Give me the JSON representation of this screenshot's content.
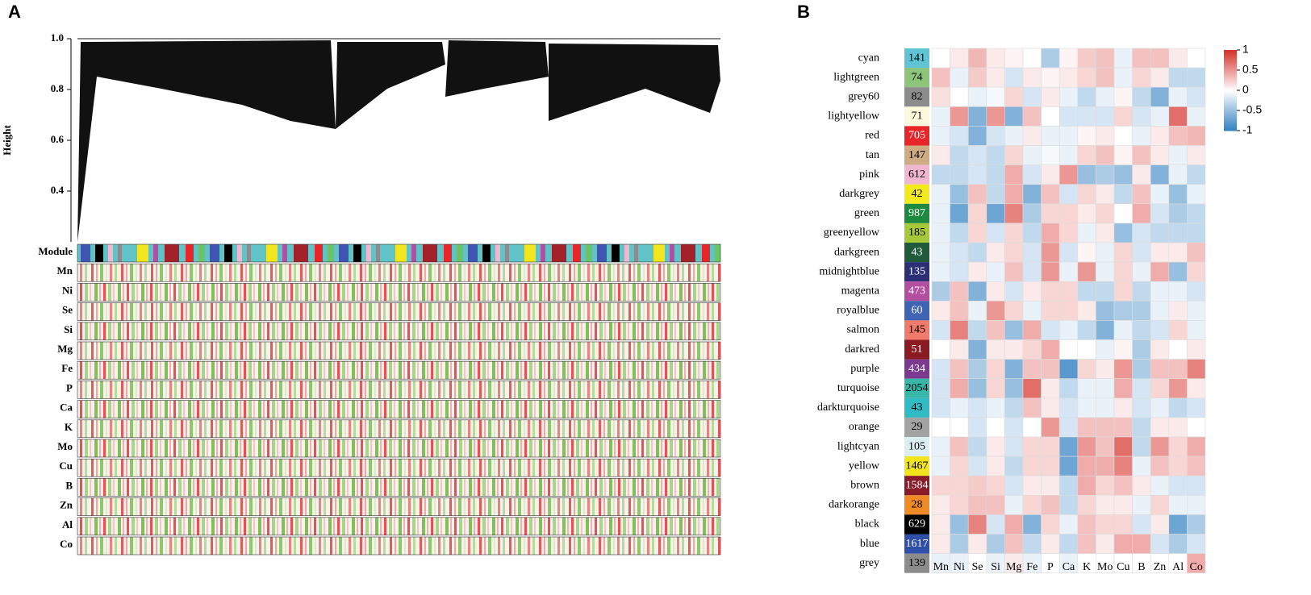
{
  "panel_a": {
    "label": "A",
    "y_label": "Height",
    "yticks": [
      0.4,
      0.6,
      {
        "value": 1.0,
        "label": "1.0"
      },
      0.8
    ],
    "ylim": [
      0.2,
      1.0
    ],
    "rows": [
      "Module",
      "Mn",
      "Ni",
      "Se",
      "Si",
      "Mg",
      "Fe",
      "P",
      "Ca",
      "K",
      "Mo",
      "Cu",
      "B",
      "Zn",
      "Al",
      "Co"
    ]
  },
  "chart_data": {
    "type": "heatmap",
    "label": "B",
    "columns": [
      "Mn",
      "Ni",
      "Se",
      "Si",
      "Mg",
      "Fe",
      "P",
      "Ca",
      "K",
      "Mo",
      "Cu",
      "B",
      "Zn",
      "Al",
      "Co"
    ],
    "rows": [
      {
        "name": "cyan",
        "color": "#5fc4d4",
        "count": 141,
        "values": [
          0,
          0.1,
          0.35,
          0.1,
          0.05,
          0,
          -0.4,
          0.05,
          0.25,
          0.3,
          -0.1,
          0.3,
          0.3,
          0.1,
          0
        ]
      },
      {
        "name": "lightgreen",
        "color": "#8cc47a",
        "count": 74,
        "values": [
          0.3,
          -0.1,
          0.25,
          0.1,
          -0.2,
          0.1,
          0.05,
          0.1,
          0.2,
          0.3,
          -0.1,
          0.2,
          0.1,
          -0.3,
          -0.3
        ]
      },
      {
        "name": "grey60",
        "color": "#8c8c8c",
        "count": 82,
        "values": [
          0.15,
          0,
          -0.1,
          -0.05,
          0.2,
          -0.2,
          0.1,
          -0.1,
          -0.3,
          -0.1,
          0.05,
          -0.3,
          -0.6,
          -0.1,
          -0.2
        ]
      },
      {
        "name": "lightyellow",
        "color": "#fdf9dc",
        "count": 71,
        "values": [
          -0.1,
          0.5,
          -0.6,
          0.5,
          -0.6,
          0.3,
          0,
          -0.2,
          -0.2,
          -0.2,
          0.2,
          -0.2,
          -0.1,
          0.7,
          -0.1
        ]
      },
      {
        "name": "red",
        "color": "#e8262a",
        "count": 705,
        "values": [
          -0.1,
          -0.2,
          -0.6,
          -0.2,
          -0.1,
          0.1,
          -0.1,
          -0.1,
          0.05,
          0.1,
          0,
          -0.1,
          0.1,
          0.3,
          0.35
        ]
      },
      {
        "name": "tan",
        "color": "#cfab84",
        "count": 147,
        "values": [
          0.1,
          -0.3,
          -0.2,
          -0.3,
          0.2,
          -0.1,
          -0.05,
          -0.1,
          0.2,
          0.3,
          0.05,
          0.3,
          0.1,
          -0.1,
          0.1
        ]
      },
      {
        "name": "pink",
        "color": "#f2b7d0",
        "count": 612,
        "values": [
          -0.3,
          -0.3,
          -0.2,
          -0.3,
          0.4,
          -0.2,
          0.1,
          0.5,
          -0.5,
          -0.4,
          -0.5,
          0.1,
          -0.6,
          -0.1,
          -0.3
        ]
      },
      {
        "name": "darkgrey",
        "color": "#f3ea1e",
        "count": 42,
        "values": [
          -0.1,
          -0.5,
          0.3,
          -0.3,
          0.4,
          -0.6,
          0.3,
          -0.2,
          0.2,
          0.1,
          -0.3,
          0.3,
          -0.1,
          -0.5,
          -0.1
        ]
      },
      {
        "name": "green",
        "color": "#1d8a3f",
        "count": 987,
        "values": [
          -0.1,
          -0.7,
          0.2,
          -0.7,
          0.6,
          -0.4,
          0.2,
          0.2,
          0.1,
          0.2,
          0,
          0.4,
          -0.2,
          -0.4,
          -0.3
        ]
      },
      {
        "name": "greenyellow",
        "color": "#a6c93a",
        "count": 185,
        "values": [
          -0.1,
          -0.3,
          0.2,
          -0.2,
          0.2,
          -0.3,
          0.4,
          0.2,
          -0.1,
          0.1,
          -0.5,
          -0.2,
          -0.3,
          -0.3,
          -0.3
        ]
      },
      {
        "name": "darkgreen",
        "color": "#1f5b3a",
        "count": 43,
        "values": [
          -0.1,
          -0.2,
          -0.3,
          0.1,
          0.2,
          -0.2,
          0.5,
          -0.2,
          0.05,
          -0.1,
          0.2,
          -0.2,
          0.1,
          0.1,
          0.3
        ]
      },
      {
        "name": "midnightblue",
        "color": "#2c2f74",
        "count": 135,
        "values": [
          -0.1,
          -0.2,
          0.1,
          -0.1,
          0.3,
          -0.2,
          0.5,
          -0.1,
          0.5,
          -0.1,
          0.2,
          -0.1,
          0.4,
          -0.5,
          0.2
        ]
      },
      {
        "name": "magenta",
        "color": "#b44ea0",
        "count": 473,
        "values": [
          -0.4,
          0.3,
          -0.6,
          0.1,
          -0.2,
          0.1,
          0.2,
          0.2,
          -0.3,
          -0.3,
          0.2,
          -0.3,
          -0.1,
          -0.1,
          -0.2
        ]
      },
      {
        "name": "royalblue",
        "color": "#3f64b4",
        "count": 60,
        "values": [
          0.1,
          0.3,
          -0.1,
          0.5,
          0.2,
          -0.1,
          0.2,
          0.2,
          0.1,
          -0.5,
          -0.4,
          -0.4,
          -0.1,
          0.1,
          -0.1
        ]
      },
      {
        "name": "salmon",
        "color": "#f07b6c",
        "count": 145,
        "values": [
          -0.2,
          0.6,
          -0.3,
          0.3,
          -0.5,
          0.4,
          -0.2,
          -0.1,
          -0.3,
          -0.6,
          -0.1,
          -0.3,
          -0.2,
          0.2,
          -0.1
        ]
      },
      {
        "name": "darkred",
        "color": "#8b1a22",
        "count": 51,
        "values": [
          0,
          0.1,
          -0.6,
          0.1,
          0.1,
          0.2,
          0.4,
          0,
          0,
          -0.1,
          0.05,
          -0.4,
          0.1,
          0,
          0.1
        ]
      },
      {
        "name": "purple",
        "color": "#7b3a8f",
        "count": 434,
        "values": [
          -0.2,
          0.3,
          -0.4,
          0.2,
          -0.6,
          0.3,
          0.3,
          -0.8,
          0.2,
          0.1,
          0.5,
          -0.4,
          0.3,
          0.3,
          0.6
        ]
      },
      {
        "name": "turquoise",
        "color": "#37b7a9",
        "count": 2054,
        "values": [
          -0.2,
          0.4,
          -0.5,
          0.2,
          -0.5,
          0.7,
          0.1,
          -0.3,
          -0.1,
          -0.1,
          0.4,
          -0.2,
          0.2,
          0.5,
          0.1
        ]
      },
      {
        "name": "darkturquoise",
        "color": "#2fbcc4",
        "count": 43,
        "values": [
          -0.2,
          -0.1,
          -0.2,
          -0.1,
          -0.3,
          0.3,
          0.1,
          -0.2,
          -0.1,
          -0.1,
          0.1,
          -0.2,
          -0.1,
          -0.3,
          -0.2
        ]
      },
      {
        "name": "orange",
        "color": "#a3a3a3",
        "count": 29,
        "values": [
          0,
          0,
          -0.2,
          0,
          -0.2,
          0,
          0.5,
          -0.2,
          0.3,
          0.3,
          0.3,
          -0.3,
          0.1,
          0.1,
          0
        ]
      },
      {
        "name": "lightcyan",
        "color": "#dbeff2",
        "count": 105,
        "values": [
          -0.1,
          0.3,
          -0.3,
          0.1,
          -0.2,
          0.2,
          0.2,
          -0.7,
          0.5,
          0.3,
          0.7,
          -0.3,
          0.5,
          0.2,
          0.4
        ]
      },
      {
        "name": "yellow",
        "color": "#f2e51c",
        "count": 1467,
        "values": [
          -0.1,
          0.2,
          -0.2,
          0.1,
          -0.3,
          0.2,
          0.2,
          -0.7,
          0.4,
          0.4,
          0.6,
          -0.1,
          0.3,
          0.2,
          0.3
        ]
      },
      {
        "name": "brown",
        "color": "#8a1c2a",
        "count": 1584,
        "values": [
          0.2,
          0.2,
          0.25,
          0.2,
          -0.2,
          0.1,
          0.1,
          -0.3,
          0.4,
          0.2,
          0.3,
          0.1,
          -0.1,
          -0.2,
          -0.2
        ]
      },
      {
        "name": "darkorange",
        "color": "#f08a24",
        "count": 28,
        "values": [
          0.1,
          0.2,
          0.3,
          0.3,
          -0.1,
          0.2,
          0.3,
          -0.3,
          0.2,
          0.1,
          0.1,
          -0.1,
          0.2,
          -0.1,
          -0.1
        ]
      },
      {
        "name": "black",
        "color": "#000000",
        "count": 629,
        "values": [
          0.1,
          -0.5,
          0.6,
          -0.2,
          0.4,
          -0.6,
          0.2,
          -0.1,
          0.3,
          0.2,
          0.2,
          -0.2,
          0.1,
          -0.7,
          -0.4
        ]
      },
      {
        "name": "blue",
        "color": "#2f4fa8",
        "count": 1617,
        "values": [
          0.1,
          -0.4,
          0.1,
          -0.4,
          0.3,
          -0.3,
          0.1,
          -0.3,
          0.3,
          0.1,
          0.4,
          0.4,
          -0.2,
          -0.4,
          -0.2
        ]
      },
      {
        "name": "grey",
        "color": "#8c8c8c",
        "count": 139,
        "values": [
          -0.1,
          -0.1,
          0,
          -0.1,
          0.1,
          -0.1,
          0,
          -0.1,
          0,
          0,
          0,
          0,
          0,
          0,
          0.4
        ]
      }
    ],
    "zlim": [
      -1,
      1
    ],
    "zticks": [
      1,
      0.5,
      0,
      -0.5,
      -1
    ],
    "low_color": "#2f7fc1",
    "mid_color": "#ffffff",
    "high_color": "#d6302a"
  }
}
